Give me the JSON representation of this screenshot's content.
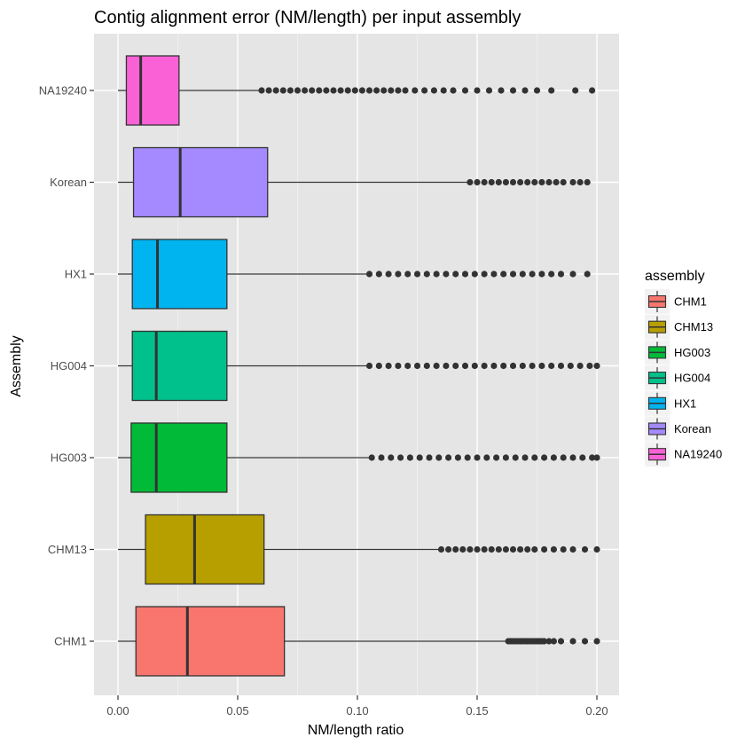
{
  "chart_data": {
    "type": "boxplot",
    "orientation": "horizontal",
    "title": "Contig alignment error (NM/length) per input assembly",
    "xlabel": "NM/length ratio",
    "ylabel": "Assembly",
    "xlim": [
      -0.01,
      0.21
    ],
    "x_ticks": [
      0.0,
      0.05,
      0.1,
      0.15,
      0.2
    ],
    "x_tick_labels": [
      "0.00",
      "0.05",
      "0.10",
      "0.15",
      "0.20"
    ],
    "grid": true,
    "background": "#e5e5e5",
    "legend": {
      "title": "assembly",
      "position": "right",
      "entries": [
        "CHM1",
        "CHM13",
        "HG003",
        "HG004",
        "HX1",
        "Korean",
        "NA19240"
      ]
    },
    "categories": [
      "CHM1",
      "CHM13",
      "HG003",
      "HG004",
      "HX1",
      "Korean",
      "NA19240"
    ],
    "series": [
      {
        "name": "CHM1",
        "color": "#F8766D",
        "whisker_low": 0.0,
        "q1": 0.0075,
        "median": 0.029,
        "q3": 0.0695,
        "whisker_high": 0.162,
        "outliers": [
          0.163,
          0.164,
          0.165,
          0.166,
          0.167,
          0.168,
          0.169,
          0.17,
          0.171,
          0.172,
          0.173,
          0.174,
          0.175,
          0.176,
          0.177,
          0.178,
          0.18,
          0.182,
          0.185,
          0.19,
          0.195,
          0.2
        ]
      },
      {
        "name": "CHM13",
        "color": "#B79F00",
        "whisker_low": 0.0,
        "q1": 0.0115,
        "median": 0.032,
        "q3": 0.061,
        "whisker_high": 0.134,
        "outliers": [
          0.135,
          0.138,
          0.141,
          0.144,
          0.147,
          0.15,
          0.153,
          0.156,
          0.159,
          0.162,
          0.165,
          0.168,
          0.171,
          0.174,
          0.178,
          0.182,
          0.186,
          0.19,
          0.195,
          0.2
        ]
      },
      {
        "name": "HG003",
        "color": "#00BA38",
        "whisker_low": 0.0,
        "q1": 0.0055,
        "median": 0.016,
        "q3": 0.0455,
        "whisker_high": 0.105,
        "outliers": [
          0.106,
          0.11,
          0.114,
          0.118,
          0.122,
          0.126,
          0.13,
          0.134,
          0.138,
          0.142,
          0.146,
          0.15,
          0.154,
          0.158,
          0.162,
          0.166,
          0.17,
          0.174,
          0.178,
          0.182,
          0.186,
          0.19,
          0.194,
          0.198,
          0.2
        ]
      },
      {
        "name": "HG004",
        "color": "#00C08B",
        "whisker_low": 0.0,
        "q1": 0.006,
        "median": 0.016,
        "q3": 0.0455,
        "whisker_high": 0.104,
        "outliers": [
          0.105,
          0.109,
          0.113,
          0.117,
          0.121,
          0.125,
          0.129,
          0.133,
          0.137,
          0.141,
          0.145,
          0.149,
          0.153,
          0.157,
          0.161,
          0.165,
          0.169,
          0.173,
          0.177,
          0.181,
          0.185,
          0.189,
          0.193,
          0.197,
          0.2
        ]
      },
      {
        "name": "HX1",
        "color": "#00B4EF",
        "whisker_low": 0.0,
        "q1": 0.006,
        "median": 0.0165,
        "q3": 0.0455,
        "whisker_high": 0.104,
        "outliers": [
          0.105,
          0.109,
          0.113,
          0.117,
          0.121,
          0.125,
          0.129,
          0.133,
          0.137,
          0.141,
          0.145,
          0.149,
          0.153,
          0.157,
          0.161,
          0.165,
          0.169,
          0.173,
          0.177,
          0.181,
          0.185,
          0.19,
          0.196
        ]
      },
      {
        "name": "Korean",
        "color": "#A58AFF",
        "whisker_low": 0.0,
        "q1": 0.0065,
        "median": 0.026,
        "q3": 0.0625,
        "whisker_high": 0.146,
        "outliers": [
          0.147,
          0.15,
          0.153,
          0.156,
          0.159,
          0.162,
          0.165,
          0.168,
          0.171,
          0.174,
          0.177,
          0.18,
          0.183,
          0.186,
          0.19,
          0.193,
          0.196
        ]
      },
      {
        "name": "NA19240",
        "color": "#FB61D7",
        "whisker_low": 0.0,
        "q1": 0.0035,
        "median": 0.0095,
        "q3": 0.0255,
        "whisker_high": 0.059,
        "outliers": [
          0.06,
          0.063,
          0.066,
          0.069,
          0.072,
          0.075,
          0.078,
          0.081,
          0.084,
          0.087,
          0.09,
          0.093,
          0.096,
          0.099,
          0.102,
          0.105,
          0.108,
          0.111,
          0.114,
          0.117,
          0.12,
          0.124,
          0.128,
          0.132,
          0.136,
          0.14,
          0.145,
          0.15,
          0.155,
          0.16,
          0.165,
          0.17,
          0.175,
          0.181,
          0.191,
          0.198
        ]
      }
    ]
  }
}
